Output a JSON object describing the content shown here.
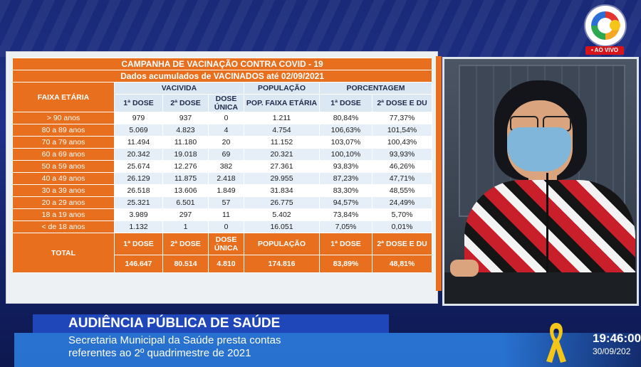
{
  "broadcast": {
    "live_label": "• AO VIVO",
    "lower_third_title": "AUDIÊNCIA PÚBLICA DE SAÚDE",
    "lower_third_line1": "Secretaria Municipal da Saúde presta contas",
    "lower_third_line2": "referentes ao 2º quadrimestre de 2021",
    "time": "19:46:00",
    "date": "30/09/202",
    "colors": {
      "accent_orange": "#e86f1d",
      "banner_blue": "#2047b9",
      "live_red": "#d7141a",
      "ribbon_yellow": "#f5c518"
    },
    "icons": [
      "channel-logo-icon",
      "yellow-ribbon-icon"
    ]
  },
  "table": {
    "title_line1": "CAMPANHA DE VACINAÇÃO CONTRA COVID - 19",
    "title_line2": "Dados acumulados de VACINADOS    até 02/09/2021",
    "faixa_header": "FAIXA ETÁRIA",
    "group_vacinados": "VACIVIDA",
    "group_populacao": "POPULAÇÃO",
    "group_porcentagem": "PORCENTAGEM",
    "col_dose1": "1ª DOSE",
    "col_dose2": "2ª DOSE",
    "col_dose_unica": "DOSE ÚNICA",
    "col_pop": "POP. FAIXA ETÁRIA",
    "col_pct1": "1ª DOSE",
    "col_pct2": "2ª DOSE E DU",
    "rows": [
      {
        "age": "> 90 anos",
        "d1": "979",
        "d2": "937",
        "du": "0",
        "pop": "1.211",
        "p1": "80,84%",
        "p2": "77,37%"
      },
      {
        "age": "80 a 89 anos",
        "d1": "5.069",
        "d2": "4.823",
        "du": "4",
        "pop": "4.754",
        "p1": "106,63%",
        "p2": "101,54%"
      },
      {
        "age": "70 a 79 anos",
        "d1": "11.494",
        "d2": "11.180",
        "du": "20",
        "pop": "11.152",
        "p1": "103,07%",
        "p2": "100,43%"
      },
      {
        "age": "60 a 69 anos",
        "d1": "20.342",
        "d2": "19.018",
        "du": "69",
        "pop": "20.321",
        "p1": "100,10%",
        "p2": "93,93%"
      },
      {
        "age": "50 a 59 anos",
        "d1": "25.674",
        "d2": "12.276",
        "du": "382",
        "pop": "27.361",
        "p1": "93,83%",
        "p2": "46,26%"
      },
      {
        "age": "40 a 49 anos",
        "d1": "26.129",
        "d2": "11.875",
        "du": "2.418",
        "pop": "29.955",
        "p1": "87,23%",
        "p2": "47,71%"
      },
      {
        "age": "30 a 39 anos",
        "d1": "26.518",
        "d2": "13.606",
        "du": "1.849",
        "pop": "31.834",
        "p1": "83,30%",
        "p2": "48,55%"
      },
      {
        "age": "20 a 29 anos",
        "d1": "25.321",
        "d2": "6.501",
        "du": "57",
        "pop": "26.775",
        "p1": "94,57%",
        "p2": "24,49%"
      },
      {
        "age": "18 a 19 anos",
        "d1": "3.989",
        "d2": "297",
        "du": "11",
        "pop": "5.402",
        "p1": "73,84%",
        "p2": "5,70%"
      },
      {
        "age": "< de 18 anos",
        "d1": "1.132",
        "d2": "1",
        "du": "0",
        "pop": "16.051",
        "p1": "7,05%",
        "p2": "0,01%"
      }
    ],
    "total": {
      "label": "TOTAL",
      "h_d1": "1ª DOSE",
      "h_d2": "2ª DOSE",
      "h_du": "DOSE ÚNICA",
      "h_pop": "POPULAÇÃO",
      "h_p1": "1ª DOSE",
      "h_p2": "2ª DOSE E DU",
      "d1": "146.647",
      "d2": "80.514",
      "du": "4.810",
      "pop": "174.816",
      "p1": "83,89%",
      "p2": "48,81%"
    }
  }
}
